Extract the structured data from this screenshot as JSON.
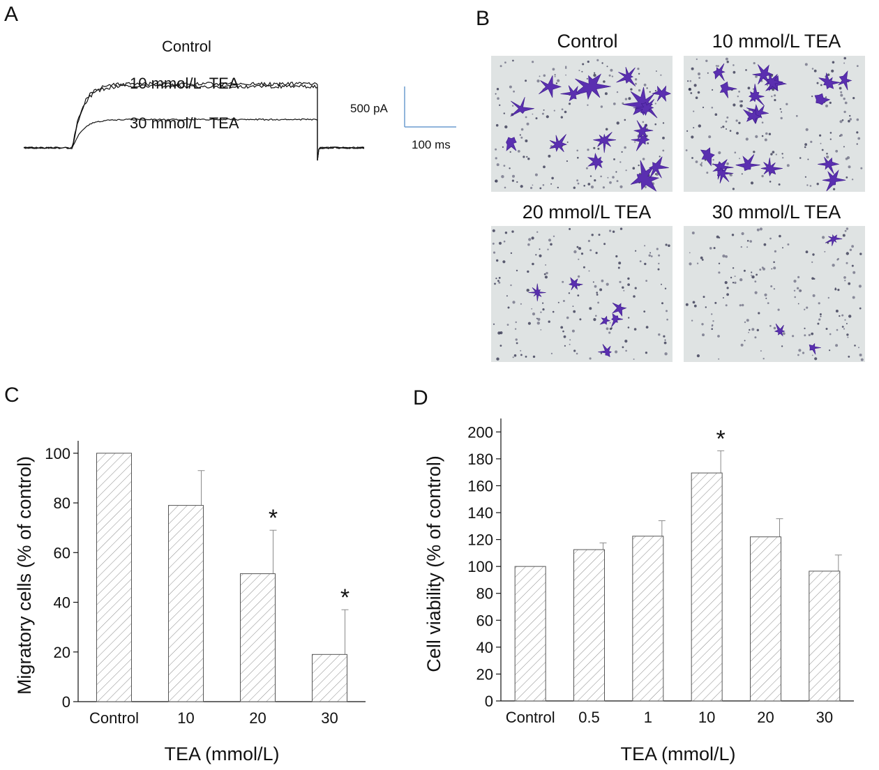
{
  "panels": {
    "a": {
      "letter": "A",
      "traces": [
        {
          "label": "Control",
          "level_pA": 790
        },
        {
          "label": "10 mmol/L  TEA",
          "level_pA": 760
        },
        {
          "label": "30 mmol/L  TEA",
          "level_pA": 350
        }
      ],
      "scale_bar": {
        "current": "500 pA",
        "time": "100 ms",
        "color": "#6c9ccf"
      }
    },
    "b": {
      "letter": "B",
      "images": [
        {
          "title": "Control",
          "cell_count": 16
        },
        {
          "title": "10 mmol/L TEA",
          "cell_count": 18
        },
        {
          "title": "20 mmol/L TEA",
          "cell_count": 6
        },
        {
          "title": "30 mmol/L TEA",
          "cell_count": 3
        }
      ],
      "stain_color": "#5a2fb0",
      "background_color": "#dfe3e3"
    },
    "c": {
      "letter": "C"
    },
    "d": {
      "letter": "D"
    }
  },
  "chart_data": [
    {
      "type": "bar",
      "panel": "C",
      "categories": [
        "Control",
        "10",
        "20",
        "30"
      ],
      "values": [
        100,
        79,
        51.5,
        19
      ],
      "errors": [
        0,
        14,
        17.5,
        18
      ],
      "significant": [
        false,
        false,
        true,
        true
      ],
      "star": "*",
      "xlabel": "TEA (mmol/L)",
      "ylabel": "Migratory cells (% of control)",
      "ylim": [
        0,
        105
      ],
      "yticks": [
        0,
        20,
        40,
        60,
        80,
        100
      ],
      "hatch": true
    },
    {
      "type": "bar",
      "panel": "D",
      "categories": [
        "Control",
        "0.5",
        "1",
        "10",
        "20",
        "30"
      ],
      "values": [
        100,
        112.5,
        122.5,
        169.5,
        122,
        96.5
      ],
      "errors": [
        0,
        5,
        11.5,
        16.5,
        13.5,
        12
      ],
      "significant": [
        false,
        false,
        false,
        true,
        false,
        false
      ],
      "star": "*",
      "xlabel": "TEA (mmol/L)",
      "ylabel": "Cell viability (% of control)",
      "ylim": [
        0,
        210
      ],
      "yticks": [
        0,
        20,
        40,
        60,
        80,
        100,
        120,
        140,
        160,
        180,
        200
      ],
      "hatch": true
    }
  ]
}
